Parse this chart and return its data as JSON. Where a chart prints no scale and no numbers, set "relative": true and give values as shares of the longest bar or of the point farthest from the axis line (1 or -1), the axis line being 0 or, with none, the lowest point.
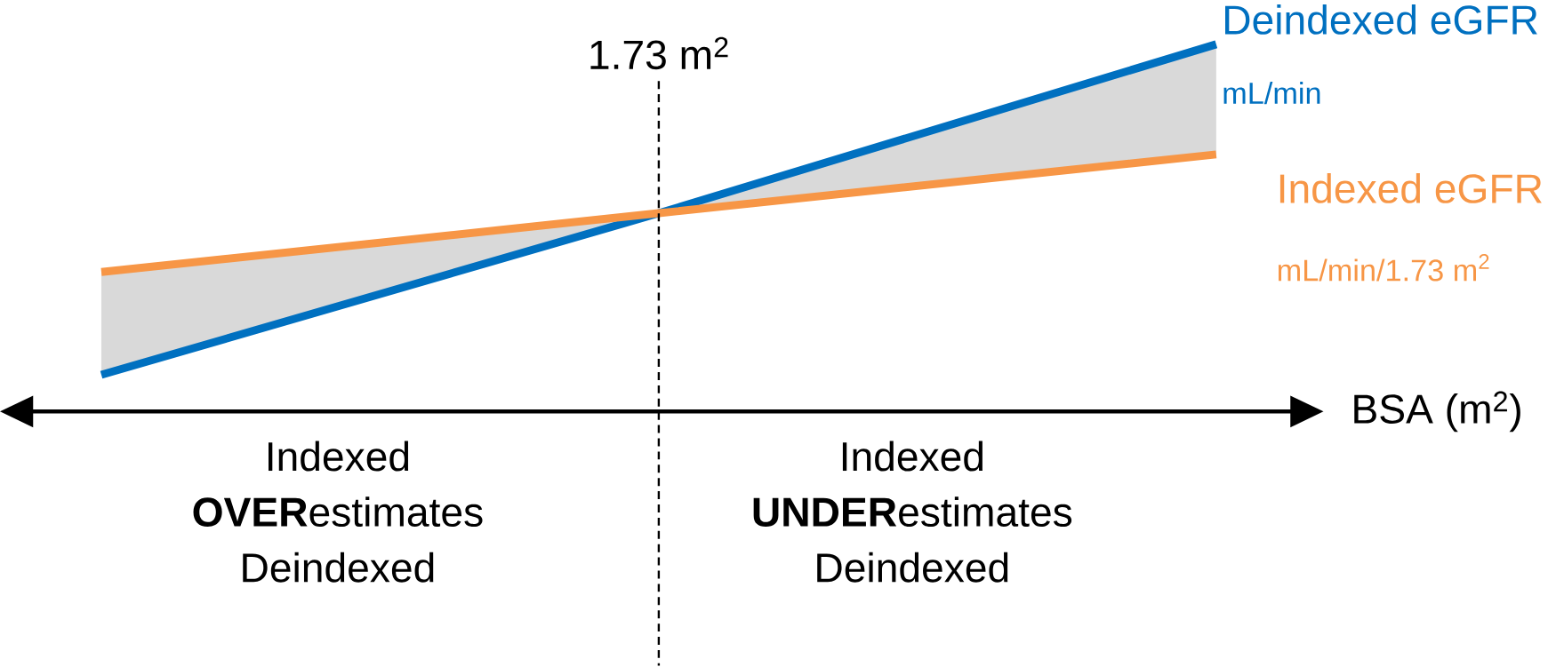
{
  "chart_data": {
    "type": "line",
    "relative": true,
    "xlabel": "BSA (m$^{2}$)",
    "categories": [
      null,
      null,
      null
    ],
    "series": [
      {
        "name": "Deindexed eGFR",
        "color": "#0070c0",
        "values": [
          0.1,
          0.54,
          1.0
        ]
      },
      {
        "name": "Indexed eGFR",
        "color": "#f79646",
        "values": [
          0.38,
          0.54,
          0.7
        ],
        "lower": [
          0.1,
          0.54,
          0.7
        ],
        "upper": [
          0.38,
          0.54,
          1.0
        ]
      }
    ],
    "annotations": [
      "mL/min",
      "mL/min/1.73 m$^{2}$",
      "Indexed **OVER**estimates Deindexed",
      "Indexed **UNDER**estimates Deindexed",
      "1.73 m$^{2}$"
    ]
  }
}
